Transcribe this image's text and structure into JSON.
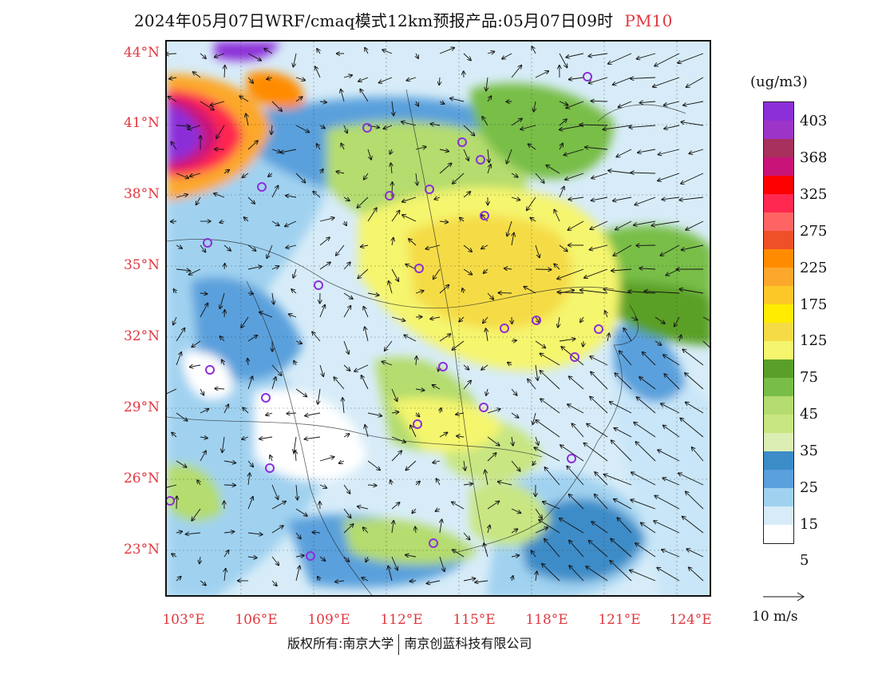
{
  "title": {
    "main": "2024年05月07日WRF/cmaq模式12km预报产品:05月07日09时",
    "variable": "PM10"
  },
  "lat_labels": [
    "44°N",
    "41°N",
    "38°N",
    "35°N",
    "32°N",
    "29°N",
    "26°N",
    "23°N"
  ],
  "lon_labels": [
    "103°E",
    "106°E",
    "109°E",
    "112°E",
    "115°E",
    "118°E",
    "121°E",
    "124°E"
  ],
  "legend": {
    "unit": "(ug/m3)",
    "colors": [
      "#8c2fd8",
      "#9c34c8",
      "#a8305c",
      "#c81478",
      "#ff0000",
      "#ff2850",
      "#ff6464",
      "#f05028",
      "#ff8c00",
      "#fca82c",
      "#fcc828",
      "#ffec00",
      "#f5dc46",
      "#f5f56e",
      "#5aa028",
      "#78be46",
      "#b4dc6e",
      "#c8e682",
      "#dceeb4",
      "#3c8cc8",
      "#5aa0dc",
      "#a0d2f0",
      "#d7ecf8",
      "#ffffff"
    ],
    "labels": [
      "403",
      "368",
      "325",
      "275",
      "225",
      "175",
      "125",
      "75",
      "45",
      "35",
      "25",
      "15",
      "5"
    ]
  },
  "wind_reference": {
    "label": "10 m/s"
  },
  "copyright": {
    "left": "版权所有:南京大学",
    "right": "南京创蓝科技有限公司"
  }
}
